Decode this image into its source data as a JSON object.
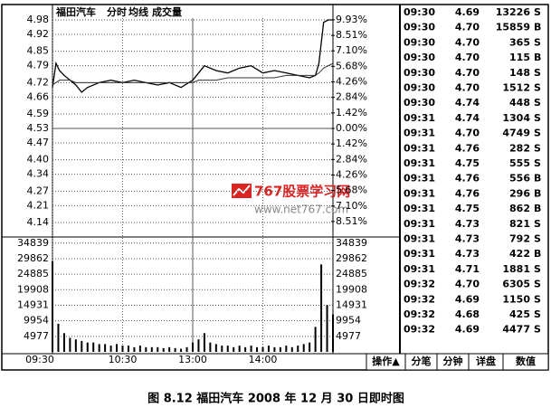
{
  "chart_data": [
    {
      "type": "line",
      "title": "福田汽车",
      "x": [
        0,
        3,
        6,
        10,
        15,
        20,
        25,
        30,
        40,
        50,
        60,
        70,
        80,
        90,
        100,
        110,
        120,
        125,
        130,
        140,
        150,
        160,
        170,
        180,
        190,
        200,
        210,
        220,
        225,
        228,
        232,
        236,
        240
      ],
      "series": [
        {
          "name": "分时",
          "color": "#000000",
          "values": [
            4.7,
            4.8,
            4.77,
            4.75,
            4.73,
            4.71,
            4.68,
            4.7,
            4.72,
            4.73,
            4.72,
            4.73,
            4.72,
            4.71,
            4.72,
            4.7,
            4.73,
            4.76,
            4.79,
            4.77,
            4.76,
            4.78,
            4.79,
            4.76,
            4.77,
            4.76,
            4.75,
            4.74,
            4.75,
            4.8,
            4.97,
            4.98,
            4.98
          ]
        },
        {
          "name": "均线",
          "color": "#333333",
          "values": [
            4.71,
            4.72,
            4.73,
            4.73,
            4.73,
            4.72,
            4.72,
            4.72,
            4.72,
            4.72,
            4.72,
            4.72,
            4.72,
            4.72,
            4.72,
            4.72,
            4.72,
            4.73,
            4.73,
            4.73,
            4.74,
            4.74,
            4.74,
            4.74,
            4.74,
            4.75,
            4.75,
            4.75,
            4.75,
            4.76,
            4.78,
            4.79,
            4.8
          ]
        }
      ],
      "xlim": [
        0,
        240
      ],
      "xticks": [
        {
          "value": 0,
          "label": "09:30"
        },
        {
          "value": 60,
          "label": "10:30"
        },
        {
          "value": 120,
          "label": "13:00"
        },
        {
          "value": 180,
          "label": "14:00"
        }
      ],
      "ylim": [
        4.08,
        4.98
      ],
      "yticks": [
        4.98,
        4.92,
        4.85,
        4.79,
        4.72,
        4.66,
        4.59,
        4.53,
        4.47,
        {
          "value": 4.4,
          "label": "4.40"
        },
        4.34,
        4.27,
        4.21,
        4.14
      ],
      "y2lim": [
        -9.93,
        9.93
      ],
      "y2ticks": [
        {
          "value": 9.93,
          "label": "9.93%"
        },
        {
          "value": 8.51,
          "label": "8.51%"
        },
        {
          "value": 7.1,
          "label": "7.10%"
        },
        {
          "value": 5.68,
          "label": "5.68%"
        },
        {
          "value": 4.26,
          "label": "4.26%"
        },
        {
          "value": 2.84,
          "label": "2.84%"
        },
        {
          "value": 1.42,
          "label": "1.42%"
        },
        {
          "value": 0,
          "label": "0.00%"
        },
        {
          "value": -1.42,
          "label": "1.42%"
        },
        {
          "value": -2.84,
          "label": "2.84%"
        },
        {
          "value": -4.26,
          "label": "4.26%"
        },
        {
          "value": -5.68,
          "label": "5.68%"
        },
        {
          "value": -7.1,
          "label": "7.10%"
        },
        {
          "value": -8.51,
          "label": "8.51%"
        }
      ],
      "grid": true
    },
    {
      "type": "bar",
      "title": "成交量",
      "color": "#000000",
      "x": [
        0,
        5,
        10,
        15,
        20,
        25,
        30,
        35,
        40,
        45,
        50,
        55,
        60,
        65,
        70,
        75,
        80,
        85,
        90,
        95,
        100,
        105,
        110,
        115,
        120,
        125,
        130,
        135,
        140,
        145,
        150,
        155,
        160,
        165,
        170,
        175,
        180,
        185,
        190,
        195,
        200,
        205,
        210,
        215,
        220,
        225,
        230,
        235,
        240
      ],
      "values": [
        29000,
        9000,
        6000,
        4500,
        4000,
        3500,
        3000,
        3000,
        2500,
        2500,
        2000,
        2500,
        2000,
        2000,
        1500,
        2000,
        1500,
        1500,
        1500,
        1200,
        1500,
        1200,
        1000,
        1500,
        3000,
        4000,
        6000,
        3000,
        2500,
        2000,
        2000,
        1500,
        2000,
        1500,
        2000,
        1500,
        1500,
        2000,
        1500,
        1500,
        2000,
        1500,
        2000,
        2500,
        3000,
        8000,
        28000,
        15000,
        12000
      ],
      "xlim": [
        0,
        240
      ],
      "ylim": [
        0,
        36800
      ],
      "yticks": [
        34839,
        29862,
        24885,
        19908,
        14931,
        9954,
        4977
      ],
      "grid": true
    }
  ],
  "trades": {
    "rows": [
      [
        "09:30",
        "4.69",
        "13226",
        "S"
      ],
      [
        "09:30",
        "4.70",
        "15859",
        "B"
      ],
      [
        "09:30",
        "4.70",
        "365",
        "S"
      ],
      [
        "09:30",
        "4.70",
        "115",
        "B"
      ],
      [
        "09:30",
        "4.70",
        "148",
        "S"
      ],
      [
        "09:30",
        "4.70",
        "1512",
        "S"
      ],
      [
        "09:30",
        "4.74",
        "448",
        "S"
      ],
      [
        "09:31",
        "4.74",
        "1304",
        "S"
      ],
      [
        "09:31",
        "4.70",
        "4749",
        "S"
      ],
      [
        "09:31",
        "4.76",
        "282",
        "S"
      ],
      [
        "09:31",
        "4.75",
        "555",
        "S"
      ],
      [
        "09:31",
        "4.76",
        "556",
        "B"
      ],
      [
        "09:31",
        "4.76",
        "296",
        "B"
      ],
      [
        "09:31",
        "4.75",
        "862",
        "B"
      ],
      [
        "09:31",
        "4.73",
        "821",
        "S"
      ],
      [
        "09:31",
        "4.73",
        "792",
        "S"
      ],
      [
        "09:31",
        "4.73",
        "422",
        "B"
      ],
      [
        "09:31",
        "4.71",
        "1881",
        "S"
      ],
      [
        "09:32",
        "4.70",
        "6305",
        "S"
      ],
      [
        "09:32",
        "4.69",
        "1150",
        "S"
      ],
      [
        "09:32",
        "4.68",
        "425",
        "S"
      ],
      [
        "09:32",
        "4.69",
        "4477",
        "S"
      ]
    ]
  },
  "buttons": [
    "操作▲",
    "分笔",
    "分钟",
    "详盘",
    "数值"
  ],
  "watermark": {
    "title": "767股票学习网",
    "url": "www.net767.com"
  },
  "caption": "图 8.12   福田汽车 2008 年 12 月 30 日即时图"
}
